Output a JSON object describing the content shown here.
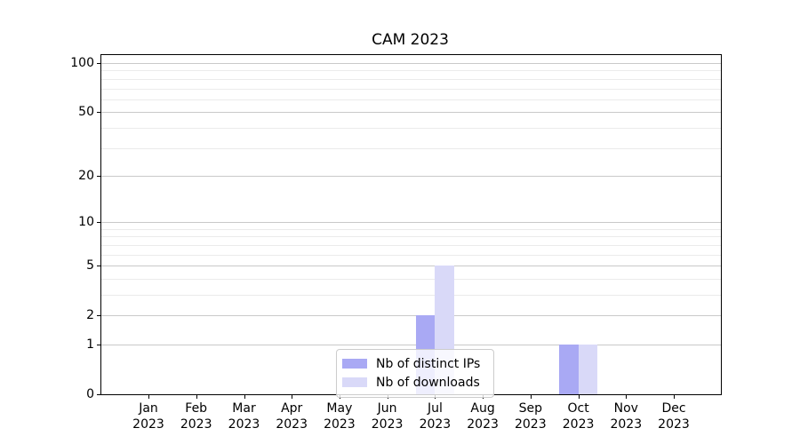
{
  "chart_data": {
    "type": "bar",
    "title": "CAM 2023",
    "year": "2023",
    "categories": [
      "Jan",
      "Feb",
      "Mar",
      "Apr",
      "May",
      "Jun",
      "Jul",
      "Aug",
      "Sep",
      "Oct",
      "Nov",
      "Dec"
    ],
    "series": [
      {
        "name": "Nb of distinct IPs",
        "color": "#a9a9f4",
        "values": [
          0,
          0,
          0,
          0,
          0,
          0,
          2,
          0,
          0,
          1,
          0,
          0
        ]
      },
      {
        "name": "Nb of downloads",
        "color": "#d9d9f8",
        "values": [
          0,
          0,
          0,
          0,
          0,
          0,
          5,
          0,
          0,
          1,
          0,
          0
        ]
      }
    ],
    "xlabel": "",
    "ylabel": "",
    "yscale": "log10(1+x)",
    "ylim": [
      0,
      112
    ],
    "y_major_ticks": [
      0,
      1,
      2,
      5,
      10,
      20,
      50,
      100
    ],
    "y_minor_ticks": [
      3,
      4,
      6,
      7,
      8,
      9,
      30,
      40,
      60,
      70,
      80,
      90
    ],
    "grid": "horizontal",
    "legend_position": "lower center",
    "colors": {
      "spine": "#000000",
      "grid_major": "#c9c9c9",
      "grid_minor": "#ebebeb",
      "background": "#ffffff"
    }
  }
}
